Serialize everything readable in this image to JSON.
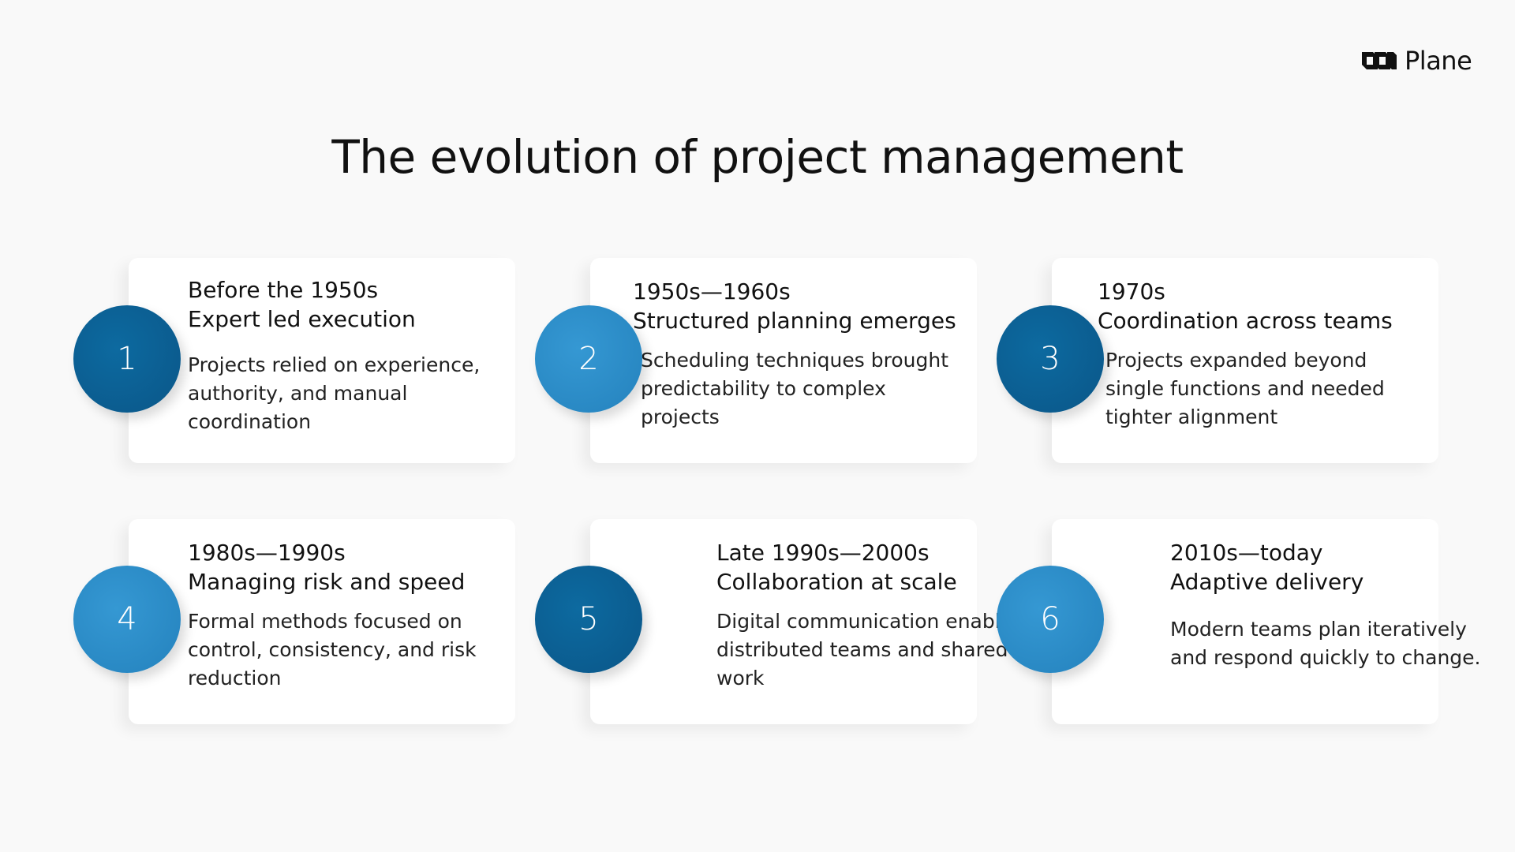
{
  "brand": {
    "name": "Plane",
    "logo_icon": "plane-logo-icon"
  },
  "title": "The evolution of project management",
  "colors": {
    "dark": "#0b5e91",
    "light": "#2f8fcb"
  },
  "steps": [
    {
      "number": "1",
      "period": "Before the 1950s",
      "heading": "Expert led execution",
      "text": "Projects relied on experience, authority, and manual coordination",
      "tone": "dark"
    },
    {
      "number": "2",
      "period": "1950s—1960s",
      "heading": "Structured planning emerges",
      "text": "Scheduling techniques brought predictability to complex projects",
      "tone": "light"
    },
    {
      "number": "3",
      "period": "1970s",
      "heading": "Coordination across teams",
      "text": "Projects expanded beyond single functions and needed tighter alignment",
      "tone": "dark"
    },
    {
      "number": "4",
      "period": "1980s—1990s",
      "heading": "Managing risk and speed",
      "text": "Formal methods focused on control, consistency, and risk reduction",
      "tone": "light"
    },
    {
      "number": "5",
      "period": "Late 1990s—2000s",
      "heading": "Collaboration at scale",
      "text": "Digital communication enabled distributed teams and shared work",
      "tone": "dark"
    },
    {
      "number": "6",
      "period": "2010s—today",
      "heading": "Adaptive delivery",
      "text": "Modern teams plan iteratively and respond quickly to change.",
      "tone": "light"
    }
  ]
}
